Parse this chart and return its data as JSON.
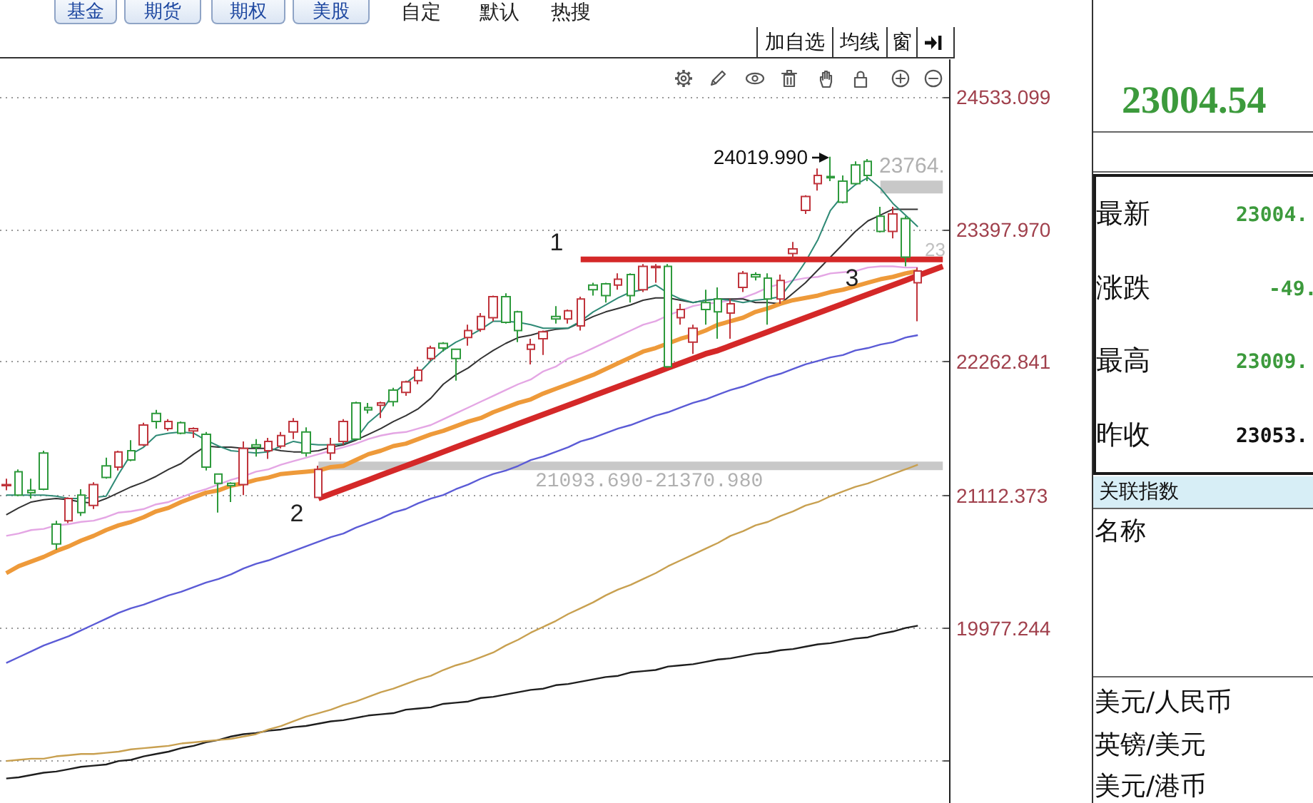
{
  "chart_data": {
    "type": "candlestick",
    "categories": [
      null,
      null,
      null,
      null,
      null,
      null,
      null,
      null,
      null,
      null,
      null,
      null,
      null,
      null,
      null,
      null,
      null,
      null,
      null,
      null,
      null,
      null,
      null,
      null,
      null,
      null,
      null,
      null,
      null,
      null,
      null,
      null,
      null,
      null,
      null,
      null,
      null,
      null,
      null,
      null,
      null,
      null,
      null,
      null,
      null,
      null,
      null,
      null,
      null,
      null,
      null,
      null,
      null,
      null,
      null,
      null,
      null,
      null,
      null,
      null,
      null,
      null,
      null,
      null,
      null,
      null,
      null,
      null,
      null,
      null,
      null,
      null,
      null,
      null,
      null,
      null
    ],
    "ohlc": [
      [
        21200,
        21260,
        21160,
        21210
      ],
      [
        21320,
        21340,
        21110,
        21120
      ],
      [
        21160,
        21260,
        21090,
        21140
      ],
      [
        21480,
        21500,
        21160,
        21170
      ],
      [
        20870,
        20900,
        20650,
        20700
      ],
      [
        20900,
        21100,
        20880,
        21090
      ],
      [
        21120,
        21170,
        20940,
        20970
      ],
      [
        21030,
        21230,
        21000,
        21210
      ],
      [
        21370,
        21440,
        21260,
        21270
      ],
      [
        21360,
        21500,
        21330,
        21490
      ],
      [
        21500,
        21590,
        21410,
        21420
      ],
      [
        21550,
        21740,
        21540,
        21720
      ],
      [
        21820,
        21850,
        21690,
        21750
      ],
      [
        21690,
        21770,
        21670,
        21750
      ],
      [
        21740,
        21750,
        21640,
        21650
      ],
      [
        21670,
        21700,
        21610,
        21690
      ],
      [
        21640,
        21660,
        21330,
        21360
      ],
      [
        21300,
        21300,
        20970,
        21220
      ],
      [
        21220,
        21230,
        21060,
        21200
      ],
      [
        21210,
        21580,
        21120,
        21520
      ],
      [
        21550,
        21600,
        21450,
        21530
      ],
      [
        21500,
        21610,
        21430,
        21580
      ],
      [
        21540,
        21660,
        21520,
        21630
      ],
      [
        21660,
        21780,
        21600,
        21750
      ],
      [
        21660,
        21700,
        21450,
        21480
      ],
      [
        21100,
        21370.98,
        21093.69,
        21340
      ],
      [
        21480,
        21610,
        21420,
        21550
      ],
      [
        21580,
        21770,
        21550,
        21750
      ],
      [
        21910,
        21920,
        21590,
        21600
      ],
      [
        21870,
        21910,
        21820,
        21850
      ],
      [
        21890,
        21920,
        21780,
        21910
      ],
      [
        22020,
        22040,
        21880,
        21920
      ],
      [
        22000,
        22100,
        21970,
        22090
      ],
      [
        22100,
        22220,
        22070,
        22190
      ],
      [
        22290,
        22400,
        22270,
        22380
      ],
      [
        22420,
        22430,
        22350,
        22380
      ],
      [
        22370,
        22370,
        22100,
        22290
      ],
      [
        22470,
        22580,
        22400,
        22530
      ],
      [
        22540,
        22680,
        22520,
        22650
      ],
      [
        22640,
        22830,
        22610,
        22820
      ],
      [
        22820,
        22850,
        22590,
        22600
      ],
      [
        22690,
        22700,
        22430,
        22530
      ],
      [
        22370,
        22460,
        22240,
        22410
      ],
      [
        22460,
        22530,
        22320,
        22520
      ],
      [
        22650,
        22740,
        22590,
        22630
      ],
      [
        22630,
        22710,
        22590,
        22700
      ],
      [
        22570,
        22820,
        22530,
        22800
      ],
      [
        22920,
        22940,
        22830,
        22880
      ],
      [
        22930,
        22940,
        22770,
        22830
      ],
      [
        22920,
        23020,
        22880,
        22970
      ],
      [
        23010,
        23020,
        22770,
        22830
      ],
      [
        22880,
        23100,
        22860,
        23080
      ],
      [
        23070,
        23100,
        22940,
        23080
      ],
      [
        23080,
        23100,
        22210,
        22220
      ],
      [
        22640,
        22760,
        22580,
        22710
      ],
      [
        22430,
        22580,
        22330,
        22550
      ],
      [
        22770,
        22880,
        22580,
        22710
      ],
      [
        22800,
        22900,
        22460,
        22690
      ],
      [
        22680,
        22800,
        22460,
        22760
      ],
      [
        22900,
        23040,
        22860,
        23020
      ],
      [
        23010,
        23030,
        22960,
        22990
      ],
      [
        22980,
        23020,
        22580,
        22800
      ],
      [
        22800,
        23010,
        22760,
        22960
      ],
      [
        23190,
        23290,
        23140,
        23230
      ],
      [
        23560,
        23690,
        23530,
        23680
      ],
      [
        23790,
        23920,
        23730,
        23860
      ],
      [
        23850,
        24019.99,
        23810,
        23840
      ],
      [
        23810,
        23860,
        23620,
        23630
      ],
      [
        23950,
        23980,
        23780,
        23790
      ],
      [
        23980,
        24000,
        23810,
        23860
      ],
      [
        23510,
        23590,
        23370,
        23380
      ],
      [
        23380,
        23590,
        23320,
        23530
      ],
      [
        23490,
        23510,
        23080,
        23160
      ],
      [
        22940,
        23070,
        22610,
        23040
      ],
      null,
      null
    ],
    "colors": [
      "#c0343c",
      "#2e9a3c",
      "#2e9a3c",
      "#2e9a3c",
      "#2e9a3c",
      "#c0343c",
      "#2e9a3c",
      "#c0343c",
      "#2e9a3c",
      "#c0343c",
      "#2e9a3c",
      "#c0343c",
      "#2e9a3c",
      "#c0343c",
      "#2e9a3c",
      "#c0343c",
      "#2e9a3c",
      "#2e9a3c",
      "#2e9a3c",
      "#c0343c",
      "#2e9a3c",
      "#c0343c",
      "#c0343c",
      "#c0343c",
      "#2e9a3c",
      "#c0343c",
      "#c0343c",
      "#c0343c",
      "#2e9a3c",
      "#2e9a3c",
      "#c0343c",
      "#2e9a3c",
      "#c0343c",
      "#c0343c",
      "#c0343c",
      "#2e9a3c",
      "#2e9a3c",
      "#c0343c",
      "#c0343c",
      "#c0343c",
      "#2e9a3c",
      "#2e9a3c",
      "#c0343c",
      "#c0343c",
      "#2e9a3c",
      "#c0343c",
      "#c0343c",
      "#2e9a3c",
      "#2e9a3c",
      "#c0343c",
      "#2e9a3c",
      "#c0343c",
      "#c0343c",
      "#2e9a3c",
      "#c0343c",
      "#c0343c",
      "#2e9a3c",
      "#2e9a3c",
      "#c0343c",
      "#c0343c",
      "#2e9a3c",
      "#2e9a3c",
      "#c0343c",
      "#c0343c",
      "#c0343c",
      "#c0343c",
      "#2e9a3c",
      "#2e9a3c",
      "#2e9a3c",
      "#2e9a3c",
      "#2e9a3c",
      "#c0343c",
      "#2e9a3c",
      "#c0343c",
      null,
      null
    ],
    "series": [
      {
        "type": "line",
        "color": "#c8c8c8",
        "values": [
          null,
          null,
          null,
          null,
          null,
          null,
          null,
          null,
          null,
          null,
          null,
          null,
          null,
          null,
          null,
          null,
          null,
          null,
          null,
          null,
          null,
          null,
          null,
          null,
          null,
          21370,
          21370,
          21370,
          21370,
          21370,
          21370,
          21370,
          21370,
          21370,
          21370,
          21370,
          21370,
          21370,
          21370,
          21370,
          21370,
          21370,
          21370,
          21370,
          21370,
          21370,
          21370,
          21370,
          21370,
          21370,
          21370,
          21370,
          21370,
          21370,
          21370,
          21370,
          21370,
          21370,
          21370,
          21370,
          21370,
          21370,
          21370,
          21370,
          21370,
          21370,
          21370,
          21370,
          21370,
          21370,
          21370,
          21370,
          21370,
          21370,
          21370,
          21370
        ]
      },
      {
        "type": "line",
        "color": "#c8c8c8",
        "values": [
          null,
          null,
          null,
          null,
          null,
          null,
          null,
          null,
          null,
          null,
          null,
          null,
          null,
          null,
          null,
          null,
          null,
          null,
          null,
          null,
          null,
          null,
          null,
          null,
          null,
          null,
          null,
          null,
          null,
          null,
          null,
          null,
          null,
          null,
          null,
          null,
          null,
          null,
          null,
          null,
          null,
          null,
          null,
          null,
          null,
          null,
          null,
          null,
          null,
          null,
          null,
          null,
          null,
          null,
          null,
          null,
          null,
          null,
          null,
          null,
          null,
          null,
          null,
          null,
          null,
          null,
          null,
          null,
          null,
          null,
          23760,
          23760,
          23760,
          23760,
          23760,
          23760
        ]
      },
      {
        "type": "line",
        "color": "#1e1e1e",
        "values": [
          18690,
          18700,
          18720,
          18740,
          18750,
          18770,
          18790,
          18800,
          18810,
          18840,
          18850,
          18880,
          18900,
          18920,
          18950,
          18970,
          19000,
          19020,
          19050,
          19070,
          19080,
          19100,
          19110,
          19130,
          19140,
          19160,
          19180,
          19190,
          19210,
          19230,
          19240,
          19250,
          19280,
          19290,
          19300,
          19330,
          19340,
          19350,
          19380,
          19390,
          19410,
          19430,
          19450,
          19460,
          19490,
          19500,
          19520,
          19540,
          19560,
          19570,
          19600,
          19610,
          19620,
          19650,
          19660,
          19670,
          19690,
          19710,
          19720,
          19740,
          19760,
          19770,
          19790,
          19800,
          19820,
          19840,
          19850,
          19870,
          19890,
          19900,
          19930,
          19950,
          19980,
          20000,
          null,
          null
        ]
      },
      {
        "type": "line",
        "color": "#c8a050",
        "values": [
          18840,
          18850,
          18860,
          18860,
          18880,
          18890,
          18900,
          18900,
          18910,
          18920,
          18940,
          18950,
          18960,
          18970,
          18990,
          19000,
          19010,
          19020,
          19030,
          19050,
          19070,
          19110,
          19140,
          19180,
          19220,
          19250,
          19280,
          19320,
          19350,
          19390,
          19430,
          19460,
          19500,
          19540,
          19570,
          19620,
          19660,
          19690,
          19730,
          19770,
          19830,
          19880,
          19940,
          19990,
          20040,
          20100,
          20150,
          20200,
          20260,
          20310,
          20350,
          20400,
          20450,
          20510,
          20560,
          20610,
          20660,
          20710,
          20770,
          20810,
          20860,
          20890,
          20940,
          20980,
          21030,
          21060,
          21110,
          21150,
          21190,
          21220,
          21260,
          21300,
          21340,
          21380,
          null,
          null
        ]
      },
      {
        "type": "line",
        "color": "#5b5bd6",
        "values": [
          19680,
          19730,
          19780,
          19830,
          19870,
          19910,
          19960,
          20010,
          20060,
          20110,
          20150,
          20180,
          20220,
          20260,
          20290,
          20330,
          20370,
          20400,
          20440,
          20490,
          20530,
          20560,
          20600,
          20640,
          20680,
          20720,
          20760,
          20790,
          20840,
          20880,
          20920,
          20970,
          21000,
          21050,
          21090,
          21120,
          21170,
          21210,
          21260,
          21300,
          21330,
          21370,
          21420,
          21450,
          21490,
          21530,
          21580,
          21610,
          21650,
          21690,
          21720,
          21760,
          21800,
          21830,
          21870,
          21910,
          21940,
          21980,
          22020,
          22050,
          22090,
          22130,
          22160,
          22200,
          22240,
          22270,
          22300,
          22320,
          22360,
          22380,
          22410,
          22430,
          22470,
          22490,
          null,
          null
        ]
      },
      {
        "type": "line",
        "color": "#ee9a3a",
        "values": [
          20450,
          20510,
          20550,
          20590,
          20640,
          20680,
          20730,
          20770,
          20820,
          20860,
          20890,
          20930,
          20980,
          21010,
          21060,
          21100,
          21140,
          21160,
          21200,
          21220,
          21250,
          21270,
          21300,
          21310,
          21320,
          21330,
          21360,
          21370,
          21420,
          21470,
          21500,
          21540,
          21560,
          21600,
          21640,
          21670,
          21710,
          21750,
          21780,
          21830,
          21870,
          21910,
          21940,
          21990,
          22030,
          22070,
          22110,
          22150,
          22200,
          22250,
          22300,
          22350,
          22380,
          22420,
          22460,
          22490,
          22530,
          22580,
          22610,
          22640,
          22690,
          22720,
          22760,
          22790,
          22810,
          22830,
          22860,
          22880,
          22910,
          22940,
          22970,
          22990,
          23020,
          23040,
          null,
          null
        ]
      },
      {
        "type": "line",
        "color": "#e4a6e4",
        "values": [
          20770,
          20790,
          20820,
          20830,
          20860,
          20870,
          20890,
          20900,
          20930,
          20970,
          20980,
          21000,
          21040,
          21060,
          21100,
          21140,
          21170,
          21210,
          21250,
          21280,
          21320,
          21340,
          21380,
          21410,
          21440,
          21470,
          21500,
          21530,
          21560,
          21600,
          21630,
          21650,
          21660,
          21690,
          21720,
          21770,
          21820,
          21870,
          21920,
          21970,
          22020,
          22070,
          22110,
          22180,
          22220,
          22290,
          22330,
          22380,
          22430,
          22480,
          22530,
          22580,
          22610,
          22660,
          22700,
          22740,
          22760,
          22770,
          22790,
          22810,
          22850,
          22900,
          22930,
          22960,
          22980,
          22990,
          23020,
          23030,
          23040,
          23070,
          23080,
          23080,
          23070,
          23070,
          null,
          null
        ]
      },
      {
        "type": "line",
        "color": "#333333",
        "values": [
          20950,
          21010,
          21060,
          21080,
          21090,
          21080,
          21060,
          21050,
          21090,
          21140,
          21190,
          21230,
          21280,
          21340,
          21390,
          21470,
          21540,
          21530,
          21530,
          21520,
          21520,
          21520,
          21500,
          21490,
          21490,
          21500,
          21530,
          21550,
          21590,
          21640,
          21690,
          21750,
          21800,
          21860,
          21950,
          22070,
          22150,
          22210,
          22290,
          22360,
          22420,
          22470,
          22490,
          22520,
          22540,
          22550,
          22600,
          22650,
          22690,
          22720,
          22750,
          22790,
          22810,
          22810,
          22790,
          22770,
          22790,
          22800,
          22800,
          22800,
          22770,
          22770,
          22760,
          22850,
          22940,
          23050,
          23160,
          23270,
          23380,
          23470,
          23520,
          23570,
          23570,
          23570,
          null,
          null
        ]
      },
      {
        "type": "line",
        "color": "#2f8a76",
        "values": [
          21120,
          21120,
          21120,
          21120,
          21110,
          21090,
          21090,
          21100,
          21110,
          21300,
          21470,
          21530,
          21630,
          21650,
          21660,
          21650,
          21590,
          21540,
          21500,
          21490,
          21480,
          21490,
          21540,
          21580,
          21560,
          21550,
          21550,
          21560,
          21600,
          21740,
          21830,
          21990,
          22080,
          22160,
          22270,
          22360,
          22430,
          22480,
          22540,
          22610,
          22610,
          22600,
          22580,
          22550,
          22550,
          22550,
          22610,
          22690,
          22750,
          22810,
          22860,
          22880,
          22920,
          22850,
          22800,
          22770,
          22790,
          22800,
          22790,
          22770,
          22790,
          22800,
          22820,
          22960,
          23120,
          23310,
          23560,
          23690,
          23780,
          23840,
          23750,
          23620,
          23520,
          23420,
          null,
          null
        ]
      },
      {
        "type": "line",
        "color": "#d42828",
        "values": [
          null,
          null,
          null,
          null,
          null,
          null,
          null,
          null,
          null,
          null,
          null,
          null,
          null,
          null,
          null,
          null,
          null,
          null,
          null,
          null,
          null,
          null,
          null,
          null,
          null,
          null,
          null,
          null,
          null,
          null,
          null,
          null,
          null,
          null,
          null,
          null,
          null,
          null,
          null,
          null,
          null,
          null,
          null,
          null,
          null,
          null,
          23140,
          23140,
          23140,
          23140,
          23140,
          23140,
          23140,
          23140,
          23140,
          23140,
          23140,
          23140,
          23140,
          23140,
          23140,
          23140,
          23140,
          23140,
          23140,
          23140,
          23140,
          23140,
          23140,
          23140,
          23140,
          23140,
          23140,
          23140,
          23140,
          23140
        ]
      },
      {
        "type": "line",
        "color": "#d42828",
        "values": [
          null,
          null,
          null,
          null,
          null,
          null,
          null,
          null,
          null,
          null,
          null,
          null,
          null,
          null,
          null,
          null,
          null,
          null,
          null,
          null,
          null,
          null,
          null,
          null,
          null,
          21090,
          21130,
          21170,
          21210,
          21250,
          21290,
          21330,
          21370,
          21410,
          21450,
          21490,
          21530,
          21570,
          21610,
          21650,
          21690,
          21730,
          21770,
          21810,
          21850,
          21890,
          21930,
          21970,
          22010,
          22050,
          22090,
          22130,
          22170,
          22210,
          22250,
          22290,
          22330,
          22360,
          22400,
          22440,
          22480,
          22520,
          22560,
          22600,
          22640,
          22680,
          22720,
          22760,
          22800,
          22840,
          22880,
          22920,
          22960,
          23000,
          23040,
          23080
        ]
      }
    ],
    "ylim": [
      18480,
      24850
    ],
    "yticks": [
      {
        "value": 18842,
        "label": null
      },
      19977.244,
      21112.373,
      22262.841,
      {
        "value": 23397.97,
        "label": "23397.970"
      },
      24533.099
    ],
    "grid": "y",
    "marker": "none",
    "tick_labels": "y",
    "annotations": [
      "24019.990",
      "23764.",
      "23",
      "21093.690-21370.980",
      "1",
      "2",
      "3",
      "基金",
      "期货",
      "期权",
      "美股",
      "自定",
      "默认",
      "热搜",
      "加自选",
      "均线",
      "窗",
      "23004.54",
      "最新",
      "23004.",
      "涨跌",
      "-49.",
      "最高",
      "23009.",
      "昨收",
      "23053.",
      "关联指数",
      "名称",
      "美元/人民币",
      "英镑/美元",
      "美元/港币"
    ]
  }
}
